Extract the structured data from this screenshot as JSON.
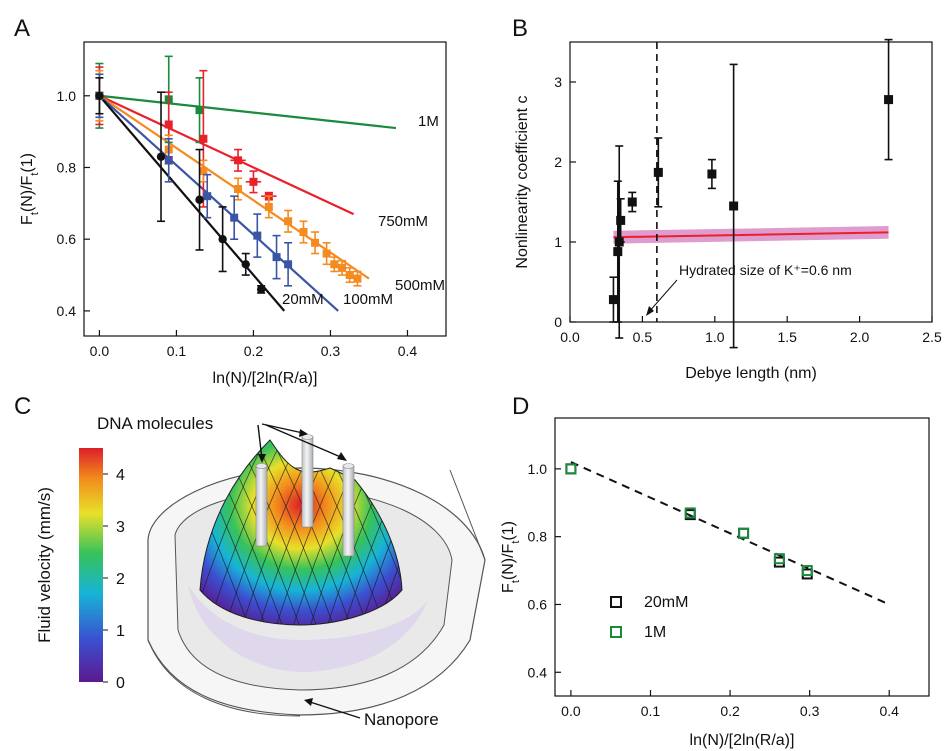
{
  "panels": {
    "A": {
      "letter": "A"
    },
    "B": {
      "letter": "B"
    },
    "C": {
      "letter": "C"
    },
    "D": {
      "letter": "D"
    }
  },
  "colors": {
    "c1M": "#1a8a3c",
    "c750": "#e8212b",
    "c500": "#f58a1f",
    "c100": "#3a55a5",
    "c20": "#111111",
    "band": "#c64aa6"
  },
  "chart_data": [
    {
      "id": "A",
      "type": "scatter",
      "xlabel": "ln(N)/[2ln(R/a)]",
      "ylabel": "F_t(N)/F_t(1)",
      "xlim": [
        -0.02,
        0.45
      ],
      "ylim": [
        0.33,
        1.15
      ],
      "xticks": [
        0.0,
        0.1,
        0.2,
        0.3,
        0.4
      ],
      "yticks": [
        0.4,
        0.6,
        0.8,
        1.0
      ],
      "series": [
        {
          "name": "1M",
          "color": "#1a8a3c",
          "line": [
            [
              0,
              1.0
            ],
            [
              0.385,
              0.91
            ]
          ],
          "points": [
            {
              "x": 0,
              "y": 1.0,
              "ey": 0.09
            },
            {
              "x": 0.09,
              "y": 0.99,
              "ey": 0.12
            },
            {
              "x": 0.13,
              "y": 0.96,
              "ey": 0.09
            }
          ]
        },
        {
          "name": "750mM",
          "color": "#e8212b",
          "line": [
            [
              0,
              1.0
            ],
            [
              0.33,
              0.67
            ]
          ],
          "points": [
            {
              "x": 0,
              "y": 1.0,
              "ey": 0.08
            },
            {
              "x": 0.09,
              "y": 0.92,
              "ey": 0.09
            },
            {
              "x": 0.135,
              "y": 0.88,
              "ey": 0.19
            },
            {
              "x": 0.18,
              "y": 0.82,
              "ey": 0.03,
              "ex": 0.01
            },
            {
              "x": 0.2,
              "y": 0.76,
              "ey": 0.03,
              "ex": 0.01
            },
            {
              "x": 0.22,
              "y": 0.72,
              "ey": 0.01,
              "ex": 0.01
            }
          ]
        },
        {
          "name": "500mM",
          "color": "#f58a1f",
          "line": [
            [
              0,
              1.0
            ],
            [
              0.35,
              0.49
            ]
          ],
          "points": [
            {
              "x": 0,
              "y": 1.0,
              "ey": 0.07
            },
            {
              "x": 0.09,
              "y": 0.85,
              "ey": 0.04
            },
            {
              "x": 0.135,
              "y": 0.79,
              "ey": 0.03
            },
            {
              "x": 0.18,
              "y": 0.74,
              "ey": 0.03
            },
            {
              "x": 0.22,
              "y": 0.69,
              "ey": 0.03
            },
            {
              "x": 0.245,
              "y": 0.65,
              "ey": 0.03
            },
            {
              "x": 0.265,
              "y": 0.62,
              "ey": 0.03
            },
            {
              "x": 0.28,
              "y": 0.59,
              "ey": 0.03
            },
            {
              "x": 0.295,
              "y": 0.56,
              "ey": 0.03
            },
            {
              "x": 0.305,
              "y": 0.53,
              "ey": 0.02
            },
            {
              "x": 0.315,
              "y": 0.52,
              "ey": 0.02
            },
            {
              "x": 0.325,
              "y": 0.5,
              "ey": 0.02
            },
            {
              "x": 0.335,
              "y": 0.49,
              "ey": 0.02
            }
          ]
        },
        {
          "name": "100mM",
          "color": "#3a55a5",
          "line": [
            [
              0,
              1.0
            ],
            [
              0.31,
              0.4
            ]
          ],
          "points": [
            {
              "x": 0,
              "y": 1.0,
              "ey": 0.06
            },
            {
              "x": 0.09,
              "y": 0.82,
              "ey": 0.06
            },
            {
              "x": 0.14,
              "y": 0.72,
              "ey": 0.06
            },
            {
              "x": 0.175,
              "y": 0.66,
              "ey": 0.06
            },
            {
              "x": 0.205,
              "y": 0.61,
              "ey": 0.06
            },
            {
              "x": 0.23,
              "y": 0.55,
              "ey": 0.06
            },
            {
              "x": 0.245,
              "y": 0.53,
              "ey": 0.06
            }
          ]
        },
        {
          "name": "20mM",
          "color": "#111111",
          "line": [
            [
              0,
              1.0
            ],
            [
              0.24,
              0.4
            ]
          ],
          "points": [
            {
              "x": 0,
              "y": 1.0,
              "ey": 0.05
            },
            {
              "x": 0.08,
              "y": 0.83,
              "ey": 0.18
            },
            {
              "x": 0.13,
              "y": 0.71,
              "ey": 0.14
            },
            {
              "x": 0.16,
              "y": 0.6,
              "ey": 0.09
            },
            {
              "x": 0.19,
              "y": 0.53,
              "ey": 0.03
            },
            {
              "x": 0.21,
              "y": 0.46,
              "ey": 0.01
            }
          ]
        }
      ]
    },
    {
      "id": "B",
      "type": "scatter",
      "xlabel": "Debye length (nm)",
      "ylabel": "Nonlinearity coefficient c",
      "xlim": [
        0.0,
        2.5
      ],
      "ylim": [
        0.0,
        3.5
      ],
      "xticks": [
        0.0,
        0.5,
        1.0,
        1.5,
        2.0,
        2.5
      ],
      "yticks": [
        0,
        1,
        2,
        3
      ],
      "points": [
        {
          "x": 0.3,
          "y": 0.28,
          "ey": 0.28
        },
        {
          "x": 0.33,
          "y": 0.88,
          "ey": 0.88
        },
        {
          "x": 0.35,
          "y": 1.27,
          "ey": 0.27
        },
        {
          "x": 0.34,
          "y": 1.0,
          "ey": 1.2
        },
        {
          "x": 0.43,
          "y": 1.5,
          "ey": 0.12
        },
        {
          "x": 0.61,
          "y": 1.87,
          "ey": 0.43
        },
        {
          "x": 0.98,
          "y": 1.85,
          "ey": 0.18
        },
        {
          "x": 1.13,
          "y": 1.45,
          "ey": 1.77
        },
        {
          "x": 2.2,
          "y": 2.78,
          "ey": 0.75
        }
      ],
      "fit_line": [
        [
          0.3,
          1.06
        ],
        [
          2.2,
          1.12
        ]
      ],
      "fit_band": 0.08,
      "vline_x": 0.6,
      "annotation": "Hydrated size of K⁺=0.6 nm"
    },
    {
      "id": "D",
      "type": "scatter",
      "xlabel": "ln(N)/[2ln(R/a)]",
      "ylabel": "F_t(N)/F_t(1)",
      "xlim": [
        -0.02,
        0.45
      ],
      "ylim": [
        0.33,
        1.15
      ],
      "xticks": [
        0.0,
        0.1,
        0.2,
        0.3,
        0.4
      ],
      "yticks": [
        0.4,
        0.6,
        0.8,
        1.0
      ],
      "series": [
        {
          "name": "20mM",
          "color": "#111111",
          "points": [
            {
              "x": 0.0,
              "y": 1.0
            },
            {
              "x": 0.15,
              "y": 0.865
            },
            {
              "x": 0.217,
              "y": 0.81
            },
            {
              "x": 0.262,
              "y": 0.725
            },
            {
              "x": 0.297,
              "y": 0.69
            }
          ]
        },
        {
          "name": "1M",
          "color": "#1a8a3c",
          "points": [
            {
              "x": 0.0,
              "y": 1.0
            },
            {
              "x": 0.15,
              "y": 0.87
            },
            {
              "x": 0.217,
              "y": 0.81
            },
            {
              "x": 0.262,
              "y": 0.735
            },
            {
              "x": 0.297,
              "y": 0.7
            }
          ]
        }
      ],
      "fit_line": [
        [
          0.0,
          1.02
        ],
        [
          0.4,
          0.6
        ]
      ]
    }
  ],
  "panelC": {
    "colorbar_label": "Fluid velocity (mm/s)",
    "colorbar_ticks": [
      "0",
      "1",
      "2",
      "3",
      "4"
    ],
    "label_dna": "DNA molecules",
    "label_pore": "Nanopore"
  }
}
